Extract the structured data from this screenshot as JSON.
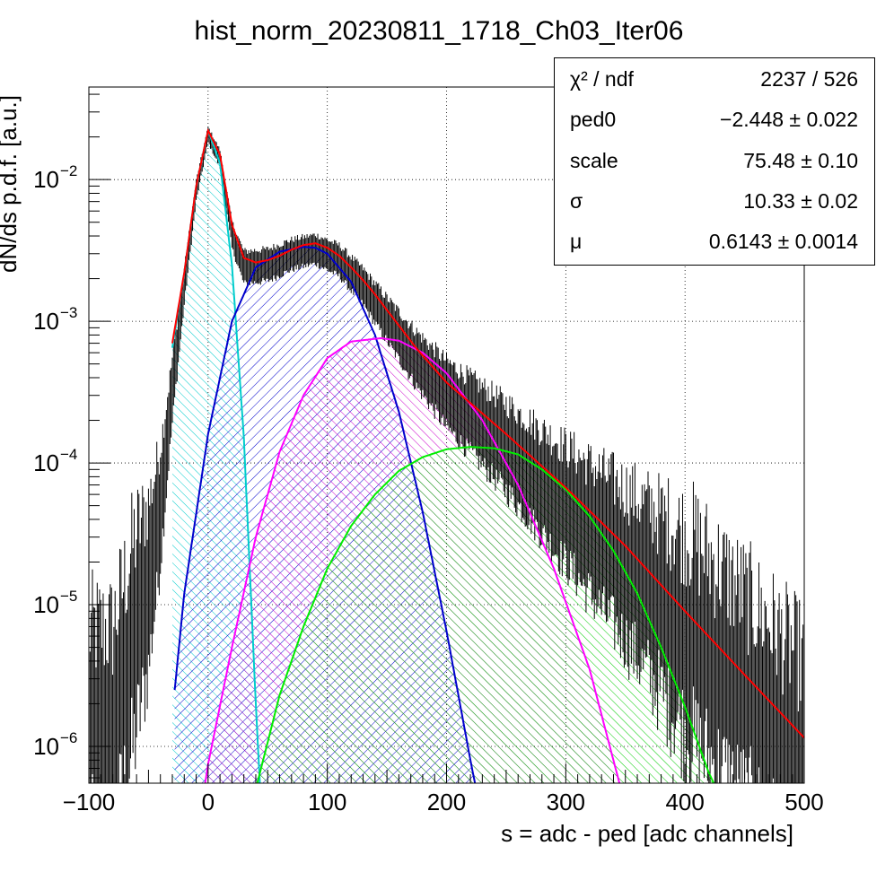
{
  "title": "hist_norm_20230811_1718_Ch03_Iter06",
  "chart_data": {
    "type": "line",
    "title": "hist_norm_20230811_1718_Ch03_Iter06",
    "xlabel": "s = adc - ped [adc channels]",
    "ylabel": "dN/ds p.d.f. [a.u.]",
    "xlim": [
      -100,
      500
    ],
    "ylim": [
      5.5e-07,
      0.045
    ],
    "yscale": "log",
    "grid": true,
    "x_ticks": [
      "−100",
      "0",
      "100",
      "200",
      "300",
      "400",
      "500"
    ],
    "y_ticks": [
      {
        "base": "10",
        "exp": "−2"
      },
      {
        "base": "10",
        "exp": "−3"
      },
      {
        "base": "10",
        "exp": "−4"
      },
      {
        "base": "10",
        "exp": "−5"
      },
      {
        "base": "10",
        "exp": "−6"
      }
    ],
    "stats_box": {
      "placement": "top-right",
      "rows": [
        {
          "label": "χ² / ndf",
          "value": "2237 / 526"
        },
        {
          "label": "ped0",
          "value": "−2.448 ± 0.022"
        },
        {
          "label": "scale",
          "value": "75.48 ± 0.10"
        },
        {
          "label": "σ",
          "value": "10.33 ± 0.02"
        },
        {
          "label": "μ",
          "value": "0.6143 ± 0.0014"
        }
      ]
    },
    "fit_params": {
      "ped0": -2.448,
      "scale": 75.48,
      "sigma": 10.33,
      "mu": 0.6143
    },
    "histogram": {
      "color": "#000000",
      "x_range": [
        -100,
        500
      ],
      "points": [
        [
          -100,
          2e-06
        ],
        [
          -80,
          2e-06
        ],
        [
          -60,
          1e-05
        ],
        [
          -50,
          2e-05
        ],
        [
          -40,
          7e-05
        ],
        [
          -30,
          0.0004
        ],
        [
          -20,
          0.002
        ],
        [
          -10,
          0.009
        ],
        [
          0,
          0.022
        ],
        [
          10,
          0.015
        ],
        [
          20,
          0.0045
        ],
        [
          30,
          0.0027
        ],
        [
          50,
          0.0028
        ],
        [
          70,
          0.0033
        ],
        [
          90,
          0.0036
        ],
        [
          110,
          0.003
        ],
        [
          130,
          0.002
        ],
        [
          150,
          0.0012
        ],
        [
          175,
          0.00065
        ],
        [
          200,
          0.00038
        ],
        [
          250,
          0.00017
        ],
        [
          300,
          7e-05
        ],
        [
          350,
          2.8e-05
        ],
        [
          400,
          1e-05
        ],
        [
          450,
          3.5e-06
        ],
        [
          500,
          1.2e-06
        ]
      ]
    },
    "series": [
      {
        "color": "#ff0000",
        "x_range": [
          -30,
          500
        ],
        "points": [
          [
            -30,
            0.0007
          ],
          [
            -20,
            0.0022
          ],
          [
            -10,
            0.009
          ],
          [
            0,
            0.0222
          ],
          [
            10,
            0.015
          ],
          [
            20,
            0.0048
          ],
          [
            30,
            0.0028
          ],
          [
            40,
            0.0026
          ],
          [
            50,
            0.0027
          ],
          [
            60,
            0.0029
          ],
          [
            70,
            0.0032
          ],
          [
            80,
            0.00345
          ],
          [
            90,
            0.00355
          ],
          [
            100,
            0.0033
          ],
          [
            110,
            0.0029
          ],
          [
            120,
            0.0024
          ],
          [
            130,
            0.00195
          ],
          [
            140,
            0.00155
          ],
          [
            150,
            0.0012
          ],
          [
            175,
            0.00064
          ],
          [
            200,
            0.00037
          ],
          [
            250,
            0.00016
          ],
          [
            300,
            6.7e-05
          ],
          [
            350,
            2.6e-05
          ],
          [
            400,
            9e-06
          ],
          [
            450,
            3.2e-06
          ],
          [
            500,
            1.15e-06
          ]
        ]
      },
      {
        "color": "#00cccc",
        "fill": true,
        "x_range": [
          -30,
          45
        ],
        "points": [
          [
            -30,
            0.00065
          ],
          [
            -20,
            0.0022
          ],
          [
            -10,
            0.009
          ],
          [
            0,
            0.0222
          ],
          [
            10,
            0.013
          ],
          [
            20,
            0.0025
          ],
          [
            30,
            0.00015
          ],
          [
            40,
            2e-06
          ],
          [
            45,
            3e-07
          ]
        ]
      },
      {
        "color": "#0000cc",
        "fill": true,
        "x_range": [
          -28,
          230
        ],
        "points": [
          [
            -28,
            2.5e-06
          ],
          [
            -20,
            1.2e-05
          ],
          [
            0,
            0.00016
          ],
          [
            20,
            0.001
          ],
          [
            40,
            0.0024
          ],
          [
            60,
            0.0031
          ],
          [
            80,
            0.00335
          ],
          [
            90,
            0.0033
          ],
          [
            100,
            0.003
          ],
          [
            120,
            0.0019
          ],
          [
            140,
            0.0008
          ],
          [
            160,
            0.00023
          ],
          [
            180,
            4.5e-05
          ],
          [
            200,
            6.5e-06
          ],
          [
            220,
            8e-07
          ],
          [
            230,
            3e-07
          ]
        ]
      },
      {
        "color": "#ff00ff",
        "fill": true,
        "x_range": [
          -5,
          345
        ],
        "points": [
          [
            -5,
            4e-07
          ],
          [
            0,
            7.5e-07
          ],
          [
            20,
            5e-06
          ],
          [
            40,
            3e-05
          ],
          [
            60,
            0.00012
          ],
          [
            80,
            0.0003
          ],
          [
            100,
            0.00055
          ],
          [
            120,
            0.00072
          ],
          [
            145,
            0.00076
          ],
          [
            160,
            0.00073
          ],
          [
            180,
            0.0006
          ],
          [
            200,
            0.00043
          ],
          [
            230,
            0.0002
          ],
          [
            260,
            7e-05
          ],
          [
            290,
            1.8e-05
          ],
          [
            320,
            3.5e-06
          ],
          [
            345,
            5.5e-07
          ]
        ]
      },
      {
        "color": "#00ee00",
        "fill": true,
        "x_range": [
          40,
          432
        ],
        "points": [
          [
            40,
            5e-07
          ],
          [
            60,
            2.3e-06
          ],
          [
            80,
            7e-06
          ],
          [
            100,
            1.8e-05
          ],
          [
            120,
            3.6e-05
          ],
          [
            140,
            6e-05
          ],
          [
            160,
            8.8e-05
          ],
          [
            180,
            0.00011
          ],
          [
            200,
            0.000125
          ],
          [
            220,
            0.00013
          ],
          [
            240,
            0.000127
          ],
          [
            260,
            0.000115
          ],
          [
            280,
            9e-05
          ],
          [
            300,
            6.5e-05
          ],
          [
            320,
            4.2e-05
          ],
          [
            340,
            2.4e-05
          ],
          [
            360,
            1.2e-05
          ],
          [
            380,
            5e-06
          ],
          [
            400,
            1.9e-06
          ],
          [
            420,
            6.5e-07
          ],
          [
            432,
            4e-07
          ]
        ]
      }
    ]
  }
}
